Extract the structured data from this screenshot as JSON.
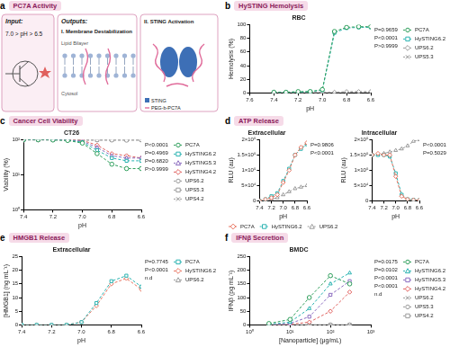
{
  "diagram": {
    "label": "a",
    "title": "PC7A Activity",
    "input": {
      "heading": "Input:",
      "condition": "7.0 > pH > 6.5"
    },
    "outputs": {
      "heading": "Outputs:",
      "membrane": {
        "title": "I. Membrane Destabilization",
        "labels": [
          "Lipid Bilayer",
          "Cytosol"
        ]
      },
      "sting": {
        "title": "II. STING Activation",
        "labels": [
          "STING",
          "PEG-b-PC7A"
        ]
      }
    }
  },
  "chart_data": [
    {
      "type": "line",
      "label": "b",
      "title": "HySTING Hemolysis",
      "subtitle": "RBC",
      "x_label": "pH",
      "y_label": "Hemolysis (%)",
      "x": [
        7.4,
        7.3,
        7.2,
        7.1,
        7.0,
        6.9,
        6.8,
        6.7,
        6.6
      ],
      "xlim": [
        7.6,
        6.6
      ],
      "xticks": [
        7.6,
        7.4,
        7.2,
        {
          "value": 7,
          "label": "7.0"
        },
        6.8,
        6.6
      ],
      "ylim": [
        0,
        100
      ],
      "yticks": [
        0,
        20,
        40,
        60,
        80,
        100
      ],
      "grid": false,
      "legend": "right",
      "line_style": "dashed",
      "annotations": [
        "P=0.9659",
        "P<0.0001",
        "P>0.9999"
      ],
      "series": [
        {
          "name": "PC7A",
          "color": "#2e9e5b",
          "marker": "circle",
          "values": [
            1,
            1,
            2,
            2,
            5,
            90,
            96,
            97,
            97
          ]
        },
        {
          "name": "HySTING6.2",
          "color": "#2bb3b1",
          "marker": "square",
          "values": [
            1,
            1,
            1,
            2,
            4,
            88,
            95,
            96,
            96
          ]
        },
        {
          "name": "UPS6.2",
          "color": "#9a9a9a",
          "marker": "diamond",
          "values": [
            1,
            1,
            1,
            1,
            1,
            1,
            2,
            2,
            2
          ]
        },
        {
          "name": "UPS5.3",
          "color": "#9a9a9a",
          "marker": "x",
          "values": [
            0,
            0,
            0,
            0,
            0,
            0,
            1,
            1,
            1
          ]
        }
      ]
    },
    {
      "type": "line",
      "label": "c",
      "title": "Cancer Cell Viability",
      "subtitle": "CT26",
      "x_label": "pH",
      "y_label": "Viability (%)",
      "x": [
        7.4,
        7.3,
        7.2,
        7.1,
        7.0,
        6.9,
        6.8,
        6.7,
        6.6
      ],
      "xlim": [
        7.4,
        6.6
      ],
      "xticks": [
        7.4,
        7.2,
        {
          "value": 7,
          "label": "7.0"
        },
        6.8,
        6.6
      ],
      "log": "y",
      "ylim": [
        1,
        100
      ],
      "yticks": [
        {
          "value": 1,
          "label": "10⁰"
        },
        {
          "value": 10,
          "label": "10¹"
        },
        {
          "value": 100,
          "label": "10²"
        }
      ],
      "grid": false,
      "legend": "right",
      "line_style": "dashed",
      "annotations": [
        "P<0.0001",
        "P=0.4969",
        "P=0.6820",
        "P>0.9999"
      ],
      "series": [
        {
          "name": "PC7A",
          "color": "#2e9e5b",
          "marker": "circle",
          "values": [
            100,
            100,
            98,
            95,
            80,
            40,
            20,
            15,
            15
          ]
        },
        {
          "name": "HySTING6.2",
          "color": "#2bb3b1",
          "marker": "square",
          "values": [
            100,
            100,
            100,
            97,
            85,
            50,
            30,
            25,
            25
          ]
        },
        {
          "name": "HySTING5.3",
          "color": "#8a6bbf",
          "marker": "triangle",
          "values": [
            100,
            100,
            100,
            98,
            90,
            60,
            35,
            30,
            30
          ]
        },
        {
          "name": "HySTING4.2",
          "color": "#e0605e",
          "marker": "diamond",
          "values": [
            100,
            100,
            100,
            100,
            95,
            70,
            40,
            35,
            30
          ]
        },
        {
          "name": "UPS6.2",
          "color": "#9a9a9a",
          "marker": "circle",
          "values": [
            98,
            99,
            100,
            98,
            97,
            99,
            98,
            97,
            99
          ]
        },
        {
          "name": "UPS5.3",
          "color": "#9a9a9a",
          "marker": "square",
          "values": [
            99,
            98,
            99,
            100,
            98,
            97,
            99,
            98,
            97
          ]
        },
        {
          "name": "UPS4.2",
          "color": "#9a9a9a",
          "marker": "x",
          "values": [
            100,
            99,
            98,
            99,
            99,
            98,
            97,
            99,
            98
          ]
        }
      ]
    },
    {
      "type": "line",
      "label": "d",
      "title": "ATP Release",
      "subtitle": "Extracellular",
      "x_label": "pH",
      "y_label": "RLU (au)",
      "x": [
        7.4,
        7.3,
        7.2,
        7.1,
        7.0,
        6.9,
        6.8,
        6.7,
        6.6
      ],
      "xlim": [
        7.4,
        6.6
      ],
      "xticks": [
        7.4,
        7.2,
        {
          "value": 7,
          "label": "7.0"
        },
        6.8,
        6.6
      ],
      "ylim": [
        0,
        200000
      ],
      "yticks": [
        0,
        {
          "value": 50000,
          "label": "5×10⁴"
        },
        {
          "value": 100000,
          "label": "1×10⁵"
        },
        {
          "value": 150000,
          "label": "1.5×10⁵"
        },
        {
          "value": 200000,
          "label": "2×10⁵"
        }
      ],
      "grid": false,
      "legend": "bottom",
      "line_style": "dashed",
      "annotations": [
        "P=0.9806",
        "P<0.0001"
      ],
      "series": [
        {
          "name": "PC7A",
          "color": "#e8735f",
          "marker": "diamond",
          "values": [
            0,
            5000,
            10000,
            20000,
            60000,
            100000,
            150000,
            175000,
            190000
          ]
        },
        {
          "name": "HySTING6.2",
          "color": "#2bb3b1",
          "marker": "square",
          "values": [
            0,
            5000,
            15000,
            25000,
            65000,
            105000,
            150000,
            170000,
            185000
          ]
        },
        {
          "name": "UPS6.2",
          "color": "#9a9a9a",
          "marker": "triangle",
          "values": [
            0,
            2000,
            5000,
            10000,
            20000,
            30000,
            40000,
            45000,
            50000
          ]
        }
      ]
    },
    {
      "type": "line",
      "subtitle": "Intracellular",
      "x_label": "pH",
      "y_label": "RLU (au)",
      "x": [
        7.4,
        7.3,
        7.2,
        7.1,
        7.0,
        6.9,
        6.8,
        6.7,
        6.6
      ],
      "xlim": [
        7.4,
        6.6
      ],
      "xticks": [
        7.4,
        7.2,
        {
          "value": 7,
          "label": "7.0"
        },
        6.8,
        6.6
      ],
      "ylim": [
        0,
        200000
      ],
      "yticks": [
        0,
        {
          "value": 50000,
          "label": "5×10⁴"
        },
        {
          "value": 100000,
          "label": "1×10⁵"
        },
        {
          "value": 150000,
          "label": "1.5×10⁵"
        },
        {
          "value": 200000,
          "label": "2×10⁵"
        }
      ],
      "grid": false,
      "line_style": "dashed",
      "annotations": [
        "P<0.0001",
        "P=0.5029"
      ],
      "series": [
        {
          "name": "PC7A",
          "color": "#e8735f",
          "marker": "diamond",
          "values": [
            150000,
            155000,
            150000,
            150000,
            80000,
            15000,
            5000,
            3000,
            2000
          ]
        },
        {
          "name": "HySTING6.2",
          "color": "#2bb3b1",
          "marker": "square",
          "values": [
            150000,
            150000,
            150000,
            145000,
            90000,
            20000,
            5000,
            3000,
            2000
          ]
        },
        {
          "name": "UPS6.2",
          "color": "#9a9a9a",
          "marker": "triangle",
          "values": [
            150000,
            150000,
            155000,
            160000,
            165000,
            170000,
            180000,
            195000,
            200000
          ]
        }
      ]
    },
    {
      "type": "line",
      "label": "e",
      "title": "HMGB1 Release",
      "subtitle": "Extracellular",
      "x_label": "pH",
      "y_label": "[HMGB1] (ng mL⁻¹)",
      "x": [
        7.4,
        7.3,
        7.2,
        7.1,
        7.0,
        6.9,
        6.8,
        6.7,
        6.6
      ],
      "xlim": [
        7.4,
        6.6
      ],
      "xticks": [
        7.4,
        7.2,
        {
          "value": 7,
          "label": "7.0"
        },
        6.8,
        6.6
      ],
      "ylim": [
        0,
        25
      ],
      "yticks": [
        0,
        5,
        10,
        15,
        20,
        25
      ],
      "grid": false,
      "legend": "right",
      "line_style": "dashed",
      "annotations": [
        "P=0.7745",
        "P<0.0001",
        "n.d"
      ],
      "series": [
        {
          "name": "PC7A",
          "color": "#2bb3b1",
          "marker": "square",
          "values": [
            0,
            0,
            0,
            0,
            1,
            8,
            16,
            18,
            14
          ]
        },
        {
          "name": "HySTING6.2",
          "color": "#e8735f",
          "marker": "diamond",
          "values": [
            0,
            0,
            0,
            0,
            1,
            7,
            15,
            17,
            13
          ]
        },
        {
          "name": "UPS6.2",
          "color": "#9a9a9a",
          "marker": "triangle",
          "values": [
            null,
            null,
            null,
            null,
            null,
            null,
            null,
            null,
            null
          ]
        }
      ]
    },
    {
      "type": "line",
      "label": "f",
      "title": "IFNβ Secretion",
      "subtitle": "BMDC",
      "x_label": "[Nanoparticle] (μg/mL)",
      "y_label": "IFNβ (pg mL⁻¹)",
      "x": [
        3,
        10,
        30,
        100,
        300
      ],
      "log": "x",
      "xlim": [
        1,
        1000
      ],
      "xticks": [
        {
          "value": 1,
          "label": "10⁰"
        },
        {
          "value": 10,
          "label": "10¹"
        },
        {
          "value": 100,
          "label": "10²"
        },
        {
          "value": 1000,
          "label": "10³"
        }
      ],
      "ylim": [
        0,
        250
      ],
      "yticks": [
        0,
        50,
        100,
        150,
        200,
        250
      ],
      "grid": false,
      "legend": "right",
      "line_style": "dashed",
      "annotations": [
        "P=0.0175",
        "P=0.0102",
        "P<0.0001",
        "P<0.0001",
        "n.d"
      ],
      "series": [
        {
          "name": "PC7A",
          "color": "#2e9e5b",
          "marker": "circle",
          "values": [
            5,
            20,
            100,
            180,
            150
          ]
        },
        {
          "name": "HySTING6.2",
          "color": "#2bb3b1",
          "marker": "triangle",
          "values": [
            2,
            10,
            60,
            150,
            190
          ]
        },
        {
          "name": "HySTING5.3",
          "color": "#8a6bbf",
          "marker": "square",
          "values": [
            0,
            5,
            30,
            110,
            160
          ]
        },
        {
          "name": "HySTING4.2",
          "color": "#e0605e",
          "marker": "diamond",
          "values": [
            0,
            2,
            10,
            50,
            120
          ]
        },
        {
          "name": "UPS6.2",
          "color": "#9a9a9a",
          "marker": "x",
          "values": [
            0,
            0,
            0,
            0,
            0
          ]
        },
        {
          "name": "UPS5.3",
          "color": "#9a9a9a",
          "marker": "circle",
          "values": [
            0,
            0,
            0,
            0,
            0
          ]
        },
        {
          "name": "UPS4.2",
          "color": "#9a9a9a",
          "marker": "square",
          "values": [
            0,
            0,
            0,
            0,
            0
          ]
        }
      ]
    }
  ]
}
